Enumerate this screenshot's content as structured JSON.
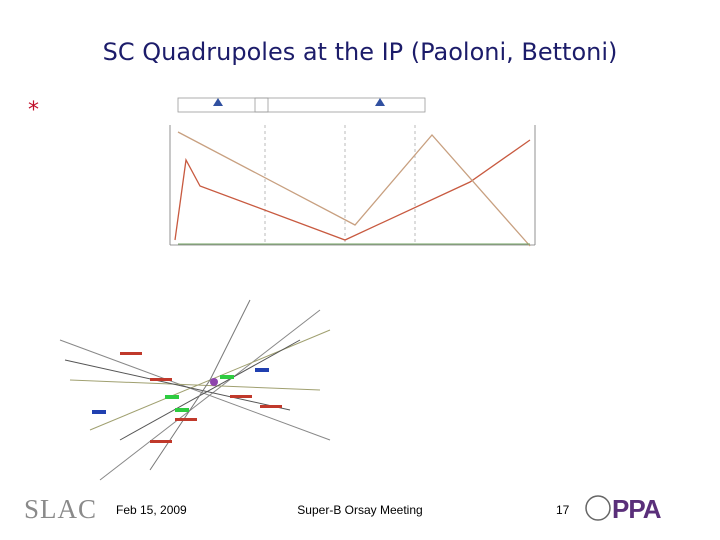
{
  "header": {
    "title": "SC Quadrupoles at the IP (Paoloni, Bettoni)"
  },
  "body": {
    "bullet": "*"
  },
  "footer": {
    "logo": "SLAC",
    "date": "Feb 15, 2009",
    "event": "Super-B Orsay Meeting",
    "page": "17",
    "partner_logo": "PPA"
  }
}
